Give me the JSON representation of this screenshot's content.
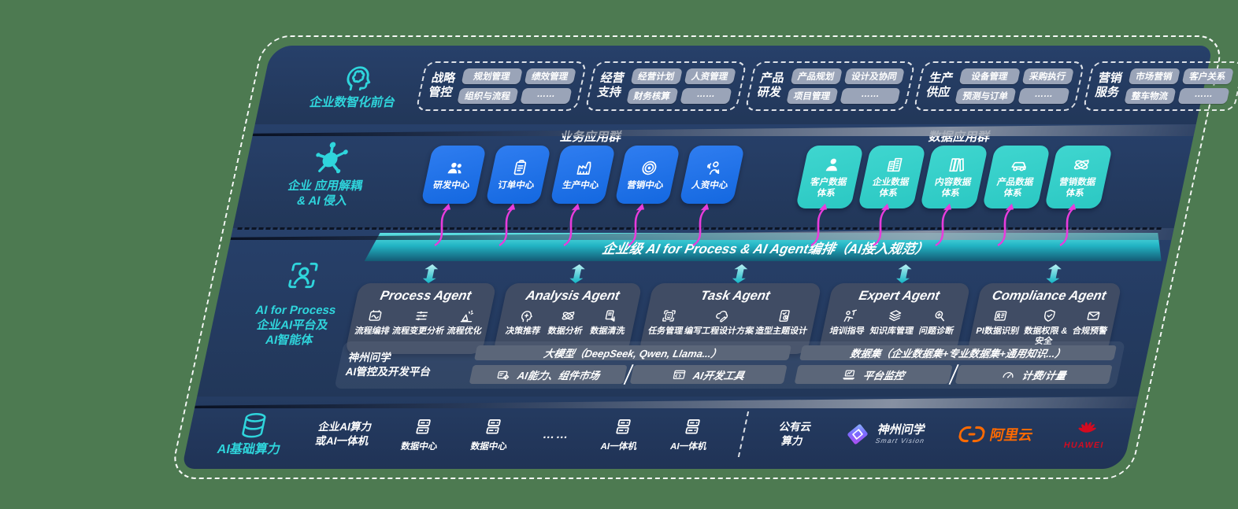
{
  "colors": {
    "bg": "#4d7a51",
    "navy": "#24395e",
    "accent": "#2fd5dc",
    "magenta": "#e83cdc",
    "blue": "#1468e0",
    "tealbox": "#2bc8c3",
    "chip": "#9aa4b8",
    "bar": "#5b6679",
    "orange": "#ff6a00",
    "red": "#d40b20"
  },
  "front_office": {
    "label": "企业数智化前台",
    "icon": "brain-head-icon",
    "groups": [
      {
        "name1": "战略",
        "name2": "管控",
        "items": [
          "规划管理",
          "绩效管理",
          "组织与流程",
          "……"
        ]
      },
      {
        "name1": "经营",
        "name2": "支持",
        "items": [
          "经营计划",
          "人资管理",
          "财务核算",
          "……"
        ]
      },
      {
        "name1": "产品",
        "name2": "研发",
        "items": [
          "产品规划",
          "设计及协同",
          "项目管理",
          "……"
        ]
      },
      {
        "name1": "生产",
        "name2": "供应",
        "items": [
          "设备管理",
          "采购执行",
          "预测与订单",
          "……"
        ]
      },
      {
        "name1": "营销",
        "name2": "服务",
        "items": [
          "市场营销",
          "客户关系",
          "整车物流",
          "……"
        ]
      }
    ]
  },
  "decoupling": {
    "label1": "企业 应用解耦",
    "label2": "& AI 侵入",
    "icon": "molecule-icon",
    "business": {
      "title": "业务应用群",
      "boxes": [
        {
          "label": "研发中心",
          "icon": "team-icon"
        },
        {
          "label": "订单中心",
          "icon": "clipboard-icon"
        },
        {
          "label": "生产中心",
          "icon": "factory-icon"
        },
        {
          "label": "营销中心",
          "icon": "target-icon"
        },
        {
          "label": "人资中心",
          "icon": "hr-icon"
        }
      ]
    },
    "data": {
      "title": "数据应用群",
      "boxes": [
        {
          "label1": "客户数据",
          "label2": "体系",
          "icon": "person-icon"
        },
        {
          "label1": "企业数据",
          "label2": "体系",
          "icon": "building-icon"
        },
        {
          "label1": "内容数据",
          "label2": "体系",
          "icon": "books-icon"
        },
        {
          "label1": "产品数据",
          "label2": "体系",
          "icon": "car-icon"
        },
        {
          "label1": "营销数据",
          "label2": "体系",
          "icon": "atom-icon"
        }
      ]
    }
  },
  "platform_layer": {
    "label1": "AI for Process",
    "label2": "企业AI平台及",
    "label3": "AI智能体",
    "icon": "scan-person-icon",
    "orchestration": "企业级 AI for Process & AI Agent编排（AI接入规范）",
    "agents": [
      {
        "title": "Process Agent",
        "items": [
          {
            "label": "流程编排",
            "icon": "workflow-icon"
          },
          {
            "label": "流程变更分析",
            "icon": "sliders-icon"
          },
          {
            "label": "流程优化",
            "icon": "spark-icon"
          }
        ]
      },
      {
        "title": "Analysis Agent",
        "items": [
          {
            "label": "决策推荐",
            "icon": "decision-icon"
          },
          {
            "label": "数据分析",
            "icon": "atom-icon"
          },
          {
            "label": "数据清洗",
            "icon": "clean-icon"
          }
        ]
      },
      {
        "title": "Task Agent",
        "items": [
          {
            "label": "任务管理",
            "icon": "robot-icon"
          },
          {
            "label": "编写工程设计方案",
            "icon": "cloud-edit-icon"
          },
          {
            "label": "造型主题设计",
            "icon": "design-icon"
          }
        ]
      },
      {
        "title": "Expert Agent",
        "items": [
          {
            "label": "培训指导",
            "icon": "training-icon"
          },
          {
            "label": "知识库管理",
            "icon": "layers-icon"
          },
          {
            "label": "问题诊断",
            "icon": "diagnosis-icon"
          }
        ]
      },
      {
        "title": "Compliance Agent",
        "items": [
          {
            "label": "PI数据识别",
            "icon": "id-card-icon"
          },
          {
            "label": "数据权限 & 安全",
            "icon": "shield-icon"
          },
          {
            "label": "合规预警",
            "icon": "mail-alert-icon"
          }
        ]
      }
    ],
    "studio": {
      "label1": "神州问学",
      "label2": "AI管控及开发平台",
      "model_bar": "大模型（DeepSeek, Qwen, Llama...）",
      "capability_bar": {
        "label": "AI能力、组件市场",
        "icon": "component-market-icon"
      },
      "devtools_bar": {
        "label": "AI开发工具",
        "icon": "dev-tools-icon"
      },
      "dataset_bar": "数据集（企业数据集+专业数据集+通用知识...）",
      "monitor_bar": {
        "label": "平台监控",
        "icon": "monitor-icon"
      },
      "billing_bar": {
        "label": "计费/计量",
        "icon": "gauge-icon"
      }
    }
  },
  "infra": {
    "label": "AI基础算力",
    "icon": "database-icon",
    "compute1": "企业AI算力",
    "compute2": "或AI一体机",
    "nodes": [
      {
        "label": "数据中心",
        "icon": "server-icon"
      },
      {
        "label": "数据中心",
        "icon": "server-icon"
      },
      {
        "label": "AI一体机",
        "icon": "server-icon"
      },
      {
        "label": "AI一体机",
        "icon": "server-icon"
      }
    ],
    "dots": "……",
    "cloud1": "公有云",
    "cloud2": "算力",
    "partners": {
      "smartvision": {
        "name": "神州问学",
        "sub": "Smart Vision",
        "icon": "smartvision-logo"
      },
      "alicloud": {
        "name": "阿里云",
        "icon": "alicloud-logo"
      },
      "huawei": {
        "name": "HUAWEI",
        "icon": "huawei-logo"
      }
    }
  }
}
